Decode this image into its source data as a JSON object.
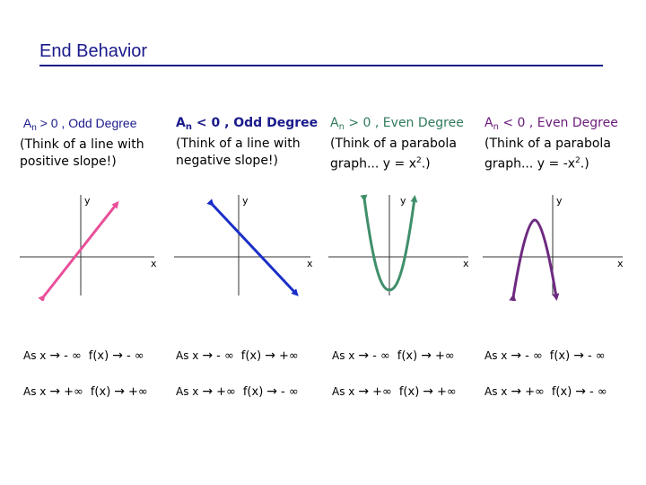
{
  "slide": {
    "title": "End Behavior"
  },
  "columns": [
    {
      "heading_a": "A",
      "heading_sub": "n",
      "heading_rest": " > 0 , Odd Degree",
      "heading_line2": "(Think of a line with",
      "heading_line3": "positive slope!)",
      "heading_color": "#1a1a8c",
      "graph": {
        "y_label": "y",
        "x_label": "x",
        "curve_color": "#e8509a",
        "shape": "line-positive-slope"
      },
      "row1": {
        "left": "As x",
        "arrow": "→",
        "limit": "- ∞",
        "fx": "f(x)",
        "result": "- ∞"
      },
      "row2": {
        "left": "As x",
        "arrow": "→",
        "limit": "+∞",
        "fx": "f(x)",
        "result": "+∞"
      }
    },
    {
      "heading_a": "A",
      "heading_sub": "n",
      "heading_rest": " < 0 , Odd Degree",
      "heading_line2": "(Think of a line with",
      "heading_line3": "negative slope!)",
      "heading_color": "#1a1a8c",
      "graph": {
        "y_label": "y",
        "x_label": "x",
        "curve_color": "#1a2fc8",
        "shape": "line-negative-slope"
      },
      "row1": {
        "left": "As x",
        "arrow": "→",
        "limit": "- ∞",
        "fx": "f(x)",
        "result": "+∞"
      },
      "row2": {
        "left": "As x",
        "arrow": "→",
        "limit": "+∞",
        "fx": "f(x)",
        "result": "- ∞"
      }
    },
    {
      "heading_a": "A",
      "heading_sub": "n",
      "heading_rest": " > 0 , Even Degree",
      "heading_line2": "(Think of a parabola",
      "heading_line3": "graph... y = x",
      "heading_sup": "2",
      "heading_end": ".)",
      "heading_color": "#2f7a5a",
      "graph": {
        "y_label": "y",
        "x_label": "x",
        "curve_color": "#3f8f6a",
        "shape": "parabola-up"
      },
      "row1": {
        "left": "As x",
        "arrow": "→",
        "limit": "- ∞",
        "fx": "f(x)",
        "result": "+∞"
      },
      "row2": {
        "left": "As x",
        "arrow": "→",
        "limit": "+∞",
        "fx": "f(x)",
        "result": "+∞"
      }
    },
    {
      "heading_a": "A",
      "heading_sub": "n",
      "heading_rest": " < 0 , Even Degree",
      "heading_line2": "(Think of a parabola",
      "heading_line3": "graph... y = -x",
      "heading_sup": "2",
      "heading_end": ".)",
      "heading_color": "#6a1a7a",
      "graph": {
        "y_label": "y",
        "x_label": "x",
        "curve_color": "#6e2a80",
        "shape": "parabola-down"
      },
      "row1": {
        "left": "As x",
        "arrow": "→",
        "limit": "- ∞",
        "fx": "f(x)",
        "result": "- ∞"
      },
      "row2": {
        "left": "As x",
        "arrow": "→",
        "limit": "+∞",
        "fx": "f(x)",
        "result": "- ∞"
      }
    }
  ]
}
